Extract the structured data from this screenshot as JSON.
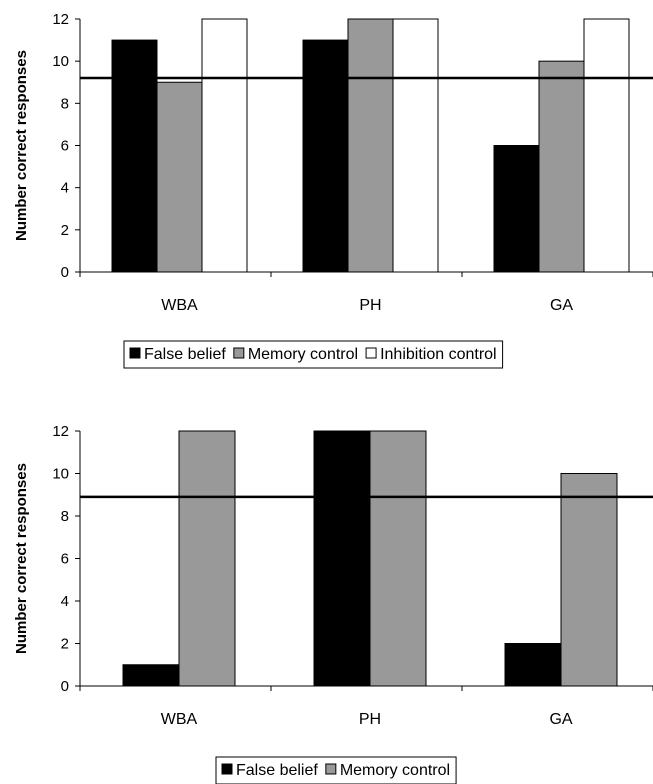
{
  "chart_data": [
    {
      "type": "bar",
      "ylabel": "Number correct responses",
      "ylim": [
        0,
        12
      ],
      "yticks": [
        0,
        2,
        4,
        6,
        8,
        10,
        12
      ],
      "categories": [
        "WBA",
        "PH",
        "GA"
      ],
      "series": [
        {
          "name": "False belief",
          "values": [
            11,
            11,
            6
          ],
          "color": "#000000"
        },
        {
          "name": "Memory control",
          "values": [
            9,
            12,
            10
          ],
          "color": "#999999"
        },
        {
          "name": "Inhibition control",
          "values": [
            12,
            12,
            12
          ],
          "color": "#ffffff"
        }
      ],
      "reference_line": 9.2,
      "grid": false,
      "legend_position": "bottom"
    },
    {
      "type": "bar",
      "ylabel": "Number correct responses",
      "ylim": [
        0,
        12
      ],
      "yticks": [
        0,
        2,
        4,
        6,
        8,
        10,
        12
      ],
      "categories": [
        "WBA",
        "PH",
        "GA"
      ],
      "series": [
        {
          "name": "False belief",
          "values": [
            1,
            12,
            2
          ],
          "color": "#000000"
        },
        {
          "name": "Memory control",
          "values": [
            12,
            12,
            10
          ],
          "color": "#999999"
        }
      ],
      "reference_line": 8.9,
      "grid": false,
      "legend_position": "bottom"
    }
  ]
}
